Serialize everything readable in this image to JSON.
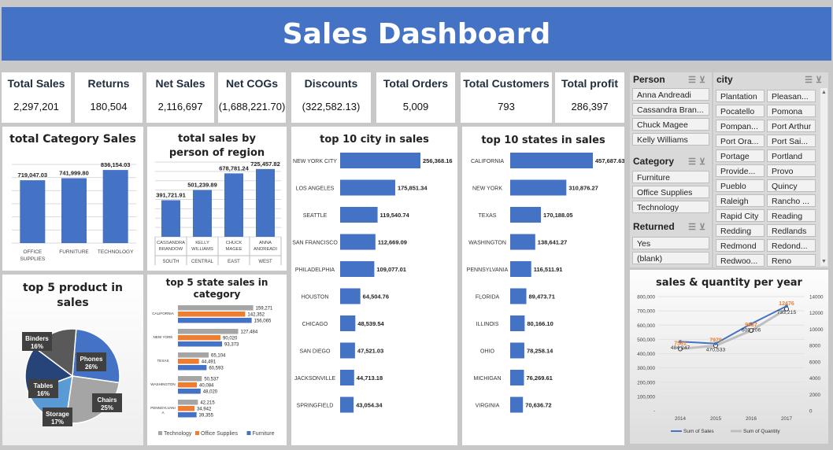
{
  "title": "Sales Dashboard",
  "kpis": [
    {
      "label": "Total Sales",
      "value": "2,297,201"
    },
    {
      "label": "Returns",
      "value": "180,504"
    },
    {
      "label": "Net Sales",
      "value": "2,116,697"
    },
    {
      "label": "Net COGs",
      "value": "(1,688,221.70)"
    },
    {
      "label": "Discounts",
      "value": "(322,582.13)"
    },
    {
      "label": "Total Orders",
      "value": "5,009"
    },
    {
      "label": "Total Customers",
      "value": "793"
    },
    {
      "label": "Total profit",
      "value": "286,397"
    }
  ],
  "colors": {
    "blue": "#4472c4",
    "orange": "#ed7d31",
    "gray": "#a5a5a5"
  },
  "chart_data": [
    {
      "type": "bar",
      "title": "total Category Sales",
      "categories": [
        "OFFICE SUPPLIES",
        "FURNITURE",
        "TECHNOLOGY"
      ],
      "values": [
        719047.03,
        741999.8,
        836154.03
      ],
      "value_labels": [
        "719,047.03",
        "741,999.80",
        "836,154.03"
      ],
      "grid": true
    },
    {
      "type": "bar",
      "title": "total sales by person of region",
      "categories": [
        "CASSANDRA BRANDOW",
        "KELLY WILLIAMS",
        "CHUCK MAGEE",
        "ANNA ANDREADI"
      ],
      "groups": [
        "SOUTH",
        "CENTRAL",
        "EAST",
        "WEST"
      ],
      "values": [
        391721.91,
        501239.89,
        678781.24,
        725457.82
      ],
      "value_labels": [
        "391,721.91",
        "501,239.89",
        "678,781.24",
        "725,457.82"
      ],
      "grid": true
    },
    {
      "type": "bar",
      "orientation": "horizontal",
      "title": "top 10 city in sales",
      "categories": [
        "NEW YORK CITY",
        "LOS ANGELES",
        "SEATTLE",
        "SAN FRANCISCO",
        "PHILADELPHIA",
        "HOUSTON",
        "CHICAGO",
        "SAN DIEGO",
        "JACKSONVILLE",
        "SPRINGFIELD"
      ],
      "values": [
        256368.16,
        175851.34,
        119540.74,
        112669.09,
        109077.01,
        64504.76,
        48539.54,
        47521.03,
        44713.18,
        43054.34
      ],
      "value_labels": [
        "256,368.16",
        "175,851.34",
        "119,540.74",
        "112,669.09",
        "109,077.01",
        "64,504.76",
        "48,539.54",
        "47,521.03",
        "44,713.18",
        "43,054.34"
      ]
    },
    {
      "type": "bar",
      "orientation": "horizontal",
      "title": "top 10 states in sales",
      "categories": [
        "CALIFORNIA",
        "NEW YORK",
        "TEXAS",
        "WASHINGTON",
        "PENNSYLVANIA",
        "FLORIDA",
        "ILLINOIS",
        "OHIO",
        "MICHIGAN",
        "VIRGINIA"
      ],
      "values": [
        457687.63,
        310876.27,
        170188.05,
        138641.27,
        116511.91,
        89473.71,
        80166.1,
        78258.14,
        76269.61,
        70636.72
      ],
      "value_labels": [
        "457,687.63",
        "310,876.27",
        "170,188.05",
        "138,641.27",
        "116,511.91",
        "89,473.71",
        "80,166.10",
        "78,258.14",
        "76,269.61",
        "70,636.72"
      ]
    },
    {
      "type": "pie",
      "title": "top  5 product in sales",
      "slices": [
        {
          "label": "Phones",
          "pct": "26%",
          "value": 26,
          "color": "#4472c4"
        },
        {
          "label": "Chairs",
          "pct": "25%",
          "value": 25,
          "color": "#a5a5a5"
        },
        {
          "label": "Storage",
          "pct": "17%",
          "value": 17,
          "color": "#5b9bd5"
        },
        {
          "label": "Tables",
          "pct": "16%",
          "value": 16,
          "color": "#264478"
        },
        {
          "label": "Binders",
          "pct": "16%",
          "value": 16,
          "color": "#595959"
        }
      ]
    },
    {
      "type": "bar",
      "orientation": "horizontal",
      "title": "top  5 state sales in category",
      "categories": [
        "CALIFORNIA",
        "NEW YORK",
        "TEXAS",
        "WASHINGTON",
        "PENNSYLVANIA"
      ],
      "series": [
        {
          "name": "Technology",
          "color": "#a5a5a5",
          "values": [
            159271,
            127484,
            65104,
            50537,
            42215
          ],
          "labels": [
            "159,271",
            "127,484",
            "65,104",
            "50,537",
            "42,215"
          ]
        },
        {
          "name": "Office Supplies",
          "color": "#ed7d31",
          "values": [
            142352,
            90020,
            44491,
            40084,
            34942
          ],
          "labels": [
            "142,352",
            "90,020",
            "44,491",
            "40,084",
            "34,942"
          ]
        },
        {
          "name": "Furniture",
          "color": "#4472c4",
          "values": [
            156065,
            93373,
            60593,
            48020,
            39355
          ],
          "labels": [
            "156,065",
            "93,373",
            "60,593",
            "48,020",
            "39,355"
          ]
        }
      ],
      "legend": "bottom"
    },
    {
      "type": "line",
      "title": "sales & quantity  per year",
      "x": [
        "2014",
        "2015",
        "2016",
        "2017"
      ],
      "series": [
        {
          "name": "Sum of Sales",
          "axis": "left",
          "color": "#4472c4",
          "values": [
            484247,
            470533,
            609206,
            733215
          ],
          "labels": [
            "484,247",
            "470,533",
            "609,206",
            "733,215"
          ]
        },
        {
          "name": "Sum of Quantity",
          "axis": "right",
          "color": "#d9d9d9",
          "values": [
            7581,
            7979,
            9837,
            12476
          ],
          "labels": [
            "7581",
            "7979",
            "9837",
            "12476"
          ]
        }
      ],
      "y_left_ticks": [
        "-",
        "100,000",
        "200,000",
        "300,000",
        "400,000",
        "500,000",
        "600,000",
        "700,000",
        "800,000"
      ],
      "y_right_ticks": [
        "0",
        "2000",
        "4000",
        "6000",
        "8000",
        "10000",
        "12000",
        "14000"
      ],
      "ylim_left": [
        0,
        800000
      ],
      "ylim_right": [
        0,
        14000
      ],
      "legend": "bottom"
    }
  ],
  "slicers": {
    "person": {
      "title": "Person",
      "items": [
        "Anna Andreadi",
        "Cassandra Bran...",
        "Chuck Magee",
        "Kelly Williams"
      ]
    },
    "category": {
      "title": "Category",
      "items": [
        "Furniture",
        "Office Supplies",
        "Technology"
      ]
    },
    "returned": {
      "title": "Returned",
      "items": [
        "Yes",
        "(blank)"
      ]
    },
    "city": {
      "title": "city",
      "items": [
        "Plantation",
        "Pleasan...",
        "Pocatello",
        "Pomona",
        "Pompan...",
        "Port Arthur",
        "Port Ora...",
        "Port Sai...",
        "Portage",
        "Portland",
        "Provide...",
        "Provo",
        "Pueblo",
        "Quincy",
        "Raleigh",
        "Rancho ...",
        "Rapid City",
        "Reading",
        "Redding",
        "Redlands",
        "Redmond",
        "Redond...",
        "Redwoo...",
        "Reno"
      ]
    }
  }
}
